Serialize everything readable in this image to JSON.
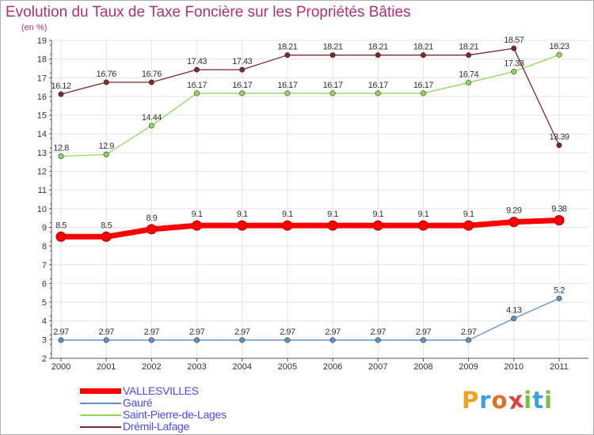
{
  "title": "Evolution du Taux de Taxe Foncière sur les Propriétés Bâties",
  "unit": "(en %)",
  "brand": {
    "letters": [
      "P",
      "r",
      "o",
      "x",
      "i",
      "t",
      "i"
    ],
    "colors": [
      "#f0a020",
      "#3aa0e0",
      "#e07020",
      "#e04040",
      "#7ac040",
      "#3aa0e0",
      "#7ac040"
    ]
  },
  "chart_data": {
    "type": "line",
    "title": "Evolution du Taux de Taxe Foncière sur les Propriétés Bâties",
    "ylabel": "(en %)",
    "xlabel": "",
    "x": [
      "2000",
      "2001",
      "2002",
      "2003",
      "2004",
      "2005",
      "2006",
      "2007",
      "2008",
      "2009",
      "2010",
      "2011"
    ],
    "ylim": [
      2,
      19
    ],
    "yticks": [
      2,
      3,
      4,
      5,
      6,
      7,
      8,
      9,
      10,
      11,
      12,
      13,
      14,
      15,
      16,
      17,
      18,
      19
    ],
    "grid": true,
    "legend_position": "bottom-left",
    "series": [
      {
        "name": "VALLESVILLES",
        "color": "#ff0000",
        "emphasis": true,
        "values": [
          8.5,
          8.5,
          8.9,
          9.1,
          9.1,
          9.1,
          9.1,
          9.1,
          9.1,
          9.1,
          9.29,
          9.38
        ],
        "labels": [
          "8.5",
          "8.5",
          "8.9",
          "9.1",
          "9.1",
          "9.1",
          "9.1",
          "9.1",
          "9.1",
          "9.1",
          "9.29",
          "9.38"
        ]
      },
      {
        "name": "Gauré",
        "color": "#5b94c8",
        "emphasis": false,
        "values": [
          2.97,
          2.97,
          2.97,
          2.97,
          2.97,
          2.97,
          2.97,
          2.97,
          2.97,
          2.97,
          4.13,
          5.2
        ],
        "labels": [
          "2.97",
          "2.97",
          "2.97",
          "2.97",
          "2.97",
          "2.97",
          "2.97",
          "2.97",
          "2.97",
          "2.97",
          "4.13",
          "5.2"
        ]
      },
      {
        "name": "Saint-Pierre-de-Lages",
        "color": "#8ed85a",
        "emphasis": false,
        "values": [
          12.8,
          12.9,
          14.44,
          16.17,
          16.17,
          16.17,
          16.17,
          16.17,
          16.17,
          16.74,
          17.33,
          18.23
        ],
        "labels": [
          "12.8",
          "12.9",
          "14.44",
          "16.17",
          "16.17",
          "16.17",
          "16.17",
          "16.17",
          "16.17",
          "16.74",
          "17.33",
          "18.23"
        ]
      },
      {
        "name": "Drémil-Lafage",
        "color": "#7a2a2a",
        "emphasis": false,
        "values": [
          16.12,
          16.76,
          16.76,
          17.43,
          17.43,
          18.21,
          18.21,
          18.21,
          18.21,
          18.21,
          18.57,
          13.39
        ],
        "labels": [
          "16.12",
          "16.76",
          "16.76",
          "17.43",
          "17.43",
          "18.21",
          "18.21",
          "18.21",
          "18.21",
          "18.21",
          "18.57",
          "13.39"
        ]
      }
    ]
  }
}
